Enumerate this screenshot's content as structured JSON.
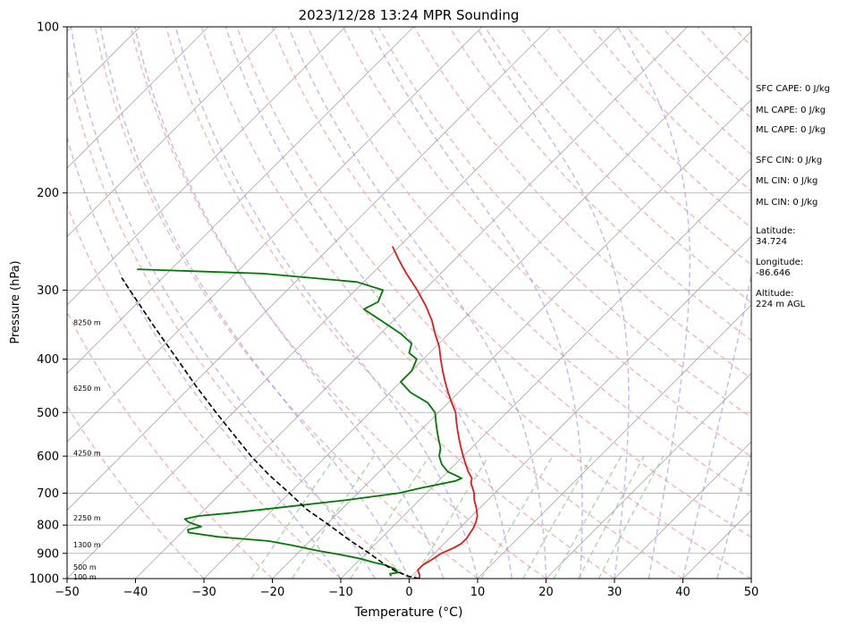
{
  "chart_data": {
    "type": "line",
    "title": "2023/12/28 13:24 MPR Sounding",
    "xlabel": "Temperature (°C)",
    "ylabel": "Pressure (hPa)",
    "xlim": [
      -50,
      50
    ],
    "ylim": [
      1000,
      100
    ],
    "y_scale": "log",
    "x_ticks": [
      -50,
      -40,
      -30,
      -20,
      -10,
      0,
      10,
      20,
      30,
      40,
      50
    ],
    "x_tick_labels": [
      "−50",
      "−40",
      "−30",
      "−20",
      "−10",
      "0",
      "10",
      "20",
      "30",
      "40",
      "50"
    ],
    "y_ticks": [
      1000,
      900,
      800,
      700,
      600,
      500,
      400,
      300,
      200,
      100
    ],
    "y_tick_labels": [
      "1000",
      "900",
      "800",
      "700",
      "600",
      "500",
      "400",
      "300",
      "200",
      "100"
    ],
    "skew": true,
    "grid": true,
    "series": [
      {
        "role": "temperature",
        "color": "#e41a1c",
        "points": [
          [
            1000,
            1.5
          ],
          [
            985,
            1.0
          ],
          [
            965,
            0.0
          ],
          [
            945,
            0.0
          ],
          [
            925,
            0.5
          ],
          [
            900,
            1.0
          ],
          [
            880,
            2.0
          ],
          [
            865,
            2.5
          ],
          [
            845,
            2.5
          ],
          [
            825,
            2.2
          ],
          [
            810,
            2.0
          ],
          [
            790,
            1.5
          ],
          [
            770,
            0.8
          ],
          [
            745,
            -0.5
          ],
          [
            720,
            -2.0
          ],
          [
            700,
            -3.0
          ],
          [
            685,
            -4.0
          ],
          [
            670,
            -5.0
          ],
          [
            658,
            -5.5
          ],
          [
            640,
            -7.0
          ],
          [
            620,
            -8.5
          ],
          [
            600,
            -10.0
          ],
          [
            580,
            -11.5
          ],
          [
            560,
            -13.0
          ],
          [
            540,
            -14.5
          ],
          [
            520,
            -16.0
          ],
          [
            500,
            -17.5
          ],
          [
            480,
            -19.5
          ],
          [
            460,
            -21.5
          ],
          [
            440,
            -23.5
          ],
          [
            420,
            -25.5
          ],
          [
            400,
            -27.5
          ],
          [
            380,
            -29.5
          ],
          [
            360,
            -32.0
          ],
          [
            340,
            -34.5
          ],
          [
            320,
            -37.5
          ],
          [
            300,
            -41.0
          ],
          [
            280,
            -45.0
          ],
          [
            265,
            -48.0
          ],
          [
            250,
            -51.0
          ]
        ]
      },
      {
        "role": "dewpoint",
        "color": "#007a00",
        "points": [
          [
            990,
            -3.0
          ],
          [
            980,
            -3.5
          ],
          [
            975,
            -2.5
          ],
          [
            960,
            -3.5
          ],
          [
            945,
            -5.5
          ],
          [
            935,
            -7.5
          ],
          [
            920,
            -10.0
          ],
          [
            905,
            -13.5
          ],
          [
            890,
            -17.5
          ],
          [
            870,
            -22.0
          ],
          [
            855,
            -26.0
          ],
          [
            840,
            -34.0
          ],
          [
            825,
            -39.0
          ],
          [
            815,
            -39.5
          ],
          [
            805,
            -38.0
          ],
          [
            790,
            -40.5
          ],
          [
            780,
            -41.5
          ],
          [
            770,
            -40.0
          ],
          [
            760,
            -35.5
          ],
          [
            740,
            -28.0
          ],
          [
            720,
            -20.5
          ],
          [
            700,
            -14.0
          ],
          [
            685,
            -11.5
          ],
          [
            675,
            -9.5
          ],
          [
            665,
            -7.5
          ],
          [
            658,
            -7.0
          ],
          [
            640,
            -10.0
          ],
          [
            620,
            -12.0
          ],
          [
            600,
            -13.5
          ],
          [
            580,
            -14.5
          ],
          [
            560,
            -16.0
          ],
          [
            540,
            -17.5
          ],
          [
            520,
            -19.0
          ],
          [
            500,
            -20.5
          ],
          [
            480,
            -23.0
          ],
          [
            460,
            -27.0
          ],
          [
            440,
            -30.0
          ],
          [
            420,
            -30.0
          ],
          [
            400,
            -31.0
          ],
          [
            390,
            -33.0
          ],
          [
            375,
            -34.0
          ],
          [
            360,
            -37.0
          ],
          [
            340,
            -42.0
          ],
          [
            325,
            -46.0
          ],
          [
            315,
            -45.0
          ],
          [
            300,
            -46.0
          ],
          [
            290,
            -51.0
          ],
          [
            280,
            -66.0
          ],
          [
            275,
            -85.0
          ]
        ]
      },
      {
        "role": "parcel",
        "color": "#000000",
        "dashed": true,
        "points": [
          [
            1000,
            1.5
          ],
          [
            990,
            -0.5
          ],
          [
            970,
            -3.0
          ],
          [
            950,
            -5.0
          ],
          [
            900,
            -9.5
          ],
          [
            850,
            -14.5
          ],
          [
            800,
            -19.5
          ],
          [
            750,
            -25.0
          ],
          [
            700,
            -30.0
          ],
          [
            650,
            -35.5
          ],
          [
            600,
            -41.0
          ],
          [
            550,
            -46.5
          ],
          [
            500,
            -52.5
          ],
          [
            450,
            -59.0
          ],
          [
            400,
            -66.0
          ],
          [
            350,
            -74.0
          ],
          [
            300,
            -83.0
          ],
          [
            285,
            -86.0
          ]
        ]
      }
    ],
    "height_labels": [
      {
        "p": 993,
        "text": "100 m"
      },
      {
        "p": 952,
        "text": "500 m"
      },
      {
        "p": 867,
        "text": "1300 m"
      },
      {
        "p": 776,
        "text": "2250 m"
      },
      {
        "p": 592,
        "text": "4250 m"
      },
      {
        "p": 452,
        "text": "6250 m"
      },
      {
        "p": 343,
        "text": "8250 m"
      }
    ],
    "info_lines": [
      "SFC CAPE: 0 J/kg",
      "ML CAPE: 0 J/kg",
      "ML CAPE: 0 J/kg",
      "SFC CIN: 0 J/kg",
      "ML CIN: 0 J/kg",
      "ML CIN: 0 J/kg",
      "Latitude:",
      "34.724",
      "Longitude:",
      "-86.646",
      "Altitude:",
      "224 m AGL"
    ],
    "colors": {
      "dry_adiabat": "#f4a3a3",
      "moist_adiabat": "#9b8ff5",
      "mixing_ratio": "#8fc98f",
      "isotherm": "#a8a8a8",
      "isobar": "#a8a8a8"
    }
  }
}
